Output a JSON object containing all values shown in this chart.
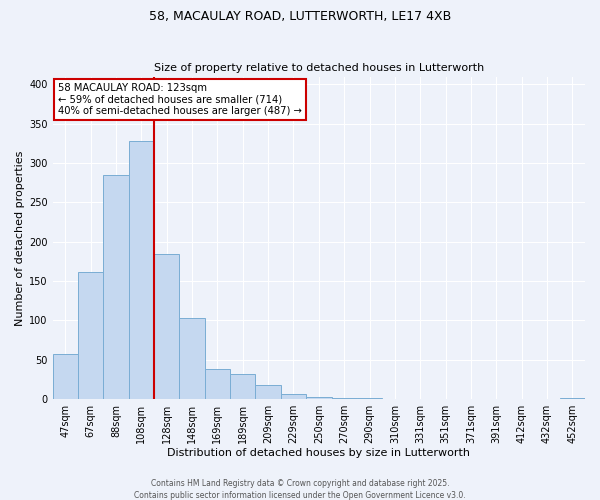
{
  "title": "58, MACAULAY ROAD, LUTTERWORTH, LE17 4XB",
  "subtitle": "Size of property relative to detached houses in Lutterworth",
  "xlabel": "Distribution of detached houses by size in Lutterworth",
  "ylabel": "Number of detached properties",
  "bar_labels": [
    "47sqm",
    "67sqm",
    "88sqm",
    "108sqm",
    "128sqm",
    "148sqm",
    "169sqm",
    "189sqm",
    "209sqm",
    "229sqm",
    "250sqm",
    "270sqm",
    "290sqm",
    "310sqm",
    "331sqm",
    "351sqm",
    "371sqm",
    "391sqm",
    "412sqm",
    "432sqm",
    "452sqm"
  ],
  "bar_values": [
    57,
    162,
    285,
    328,
    185,
    103,
    38,
    32,
    18,
    6,
    3,
    2,
    1,
    0,
    0,
    0,
    0,
    0,
    0,
    0,
    2
  ],
  "bar_color": "#c5d8f0",
  "bar_edge_color": "#7aadd4",
  "vline_color": "#cc0000",
  "vline_position": 3.5,
  "annotation_title": "58 MACAULAY ROAD: 123sqm",
  "annotation_line1": "← 59% of detached houses are smaller (714)",
  "annotation_line2": "40% of semi-detached houses are larger (487) →",
  "annotation_box_facecolor": "#ffffff",
  "annotation_box_edgecolor": "#cc0000",
  "ylim": [
    0,
    410
  ],
  "yticks": [
    0,
    50,
    100,
    150,
    200,
    250,
    300,
    350,
    400
  ],
  "footer1": "Contains HM Land Registry data © Crown copyright and database right 2025.",
  "footer2": "Contains public sector information licensed under the Open Government Licence v3.0.",
  "bg_color": "#eef2fa",
  "grid_color": "#ffffff",
  "title_fontsize": 9,
  "subtitle_fontsize": 8,
  "axis_label_fontsize": 8,
  "tick_fontsize": 7,
  "footer_fontsize": 5.5
}
